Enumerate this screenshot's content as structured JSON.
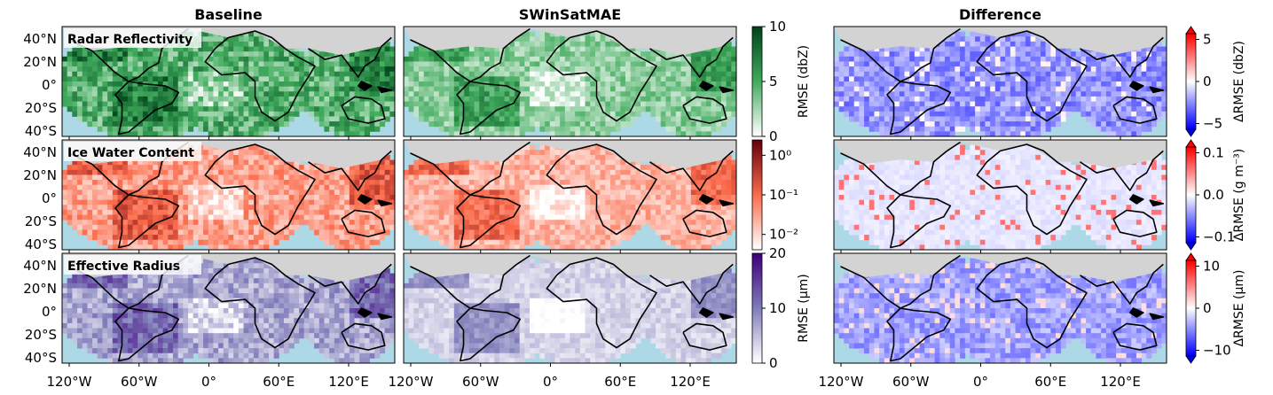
{
  "colors": {
    "ocean": "#add8e6",
    "land_masked": "#d3d3d3",
    "greens_max": "#00441b",
    "reds_max": "#67000d",
    "purples_max": "#3f007d",
    "diff_neg": "#0000ff",
    "diff_pos": "#ff0000"
  },
  "chart_data": {
    "type": "heatmap",
    "columns": [
      "Baseline",
      "SWinSatMAE",
      "Difference"
    ],
    "rows": [
      {
        "variable": "Radar Reflectivity",
        "colormap": "greens",
        "colorbar_label": "RMSE (dbZ)",
        "colorbar_range": [
          0,
          10
        ],
        "colorbar_ticks": [
          "10",
          "5",
          "0"
        ],
        "diff_colorbar_label": "ΔRMSE (dbZ)",
        "diff_range": [
          -5,
          5
        ],
        "diff_ticks": [
          "5",
          "0",
          "−5"
        ],
        "baseline_level": 0.55,
        "swinsatmae_level": 0.35,
        "diff_mean": -0.35
      },
      {
        "variable": "Ice Water Content",
        "colormap": "reds",
        "colorbar_label": "",
        "colorbar_scale": "log",
        "colorbar_ticks": [
          "10⁰",
          "10⁻¹",
          "10⁻²"
        ],
        "diff_colorbar_label": "ΔRMSE (g m⁻³)",
        "diff_range": [
          -0.15,
          0.15
        ],
        "diff_ticks": [
          "0.1",
          "0.0",
          "−0.1"
        ],
        "baseline_level": 0.38,
        "swinsatmae_level": 0.3,
        "diff_mean": -0.08
      },
      {
        "variable": "Effective Radius",
        "colormap": "purples",
        "colorbar_label": "RMSE (μm)",
        "colorbar_range": [
          0,
          20
        ],
        "colorbar_ticks": [
          "20",
          "10",
          "0"
        ],
        "diff_colorbar_label": "ΔRMSE (μm)",
        "diff_range": [
          -12,
          12
        ],
        "diff_ticks": [
          "10",
          "0",
          "−10"
        ],
        "baseline_level": 0.4,
        "swinsatmae_level": 0.2,
        "diff_mean": -0.3
      }
    ],
    "x_ticks": [
      "120°W",
      "60°W",
      "0°",
      "60°E",
      "120°E"
    ],
    "y_ticks": [
      "40°N",
      "20°N",
      "0°",
      "20°S",
      "40°S"
    ]
  }
}
